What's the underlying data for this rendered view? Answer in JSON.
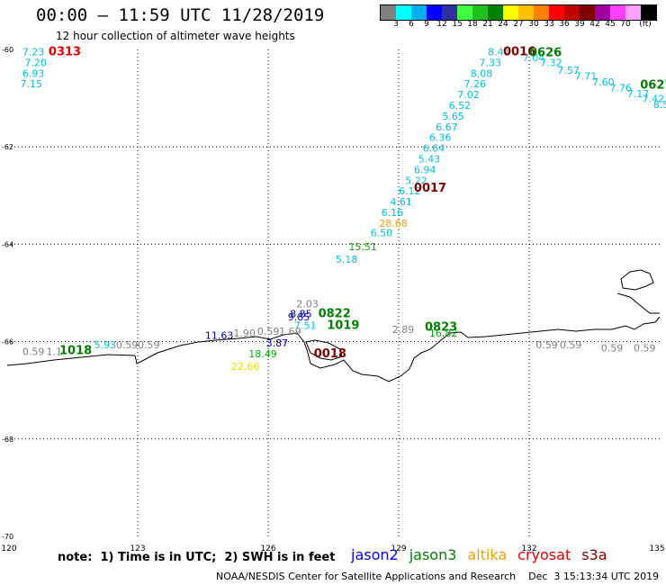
{
  "header": {
    "title": "00:00 – 11:59 UTC 11/28/2019",
    "subtitle": "12 hour collection of altimeter wave heights"
  },
  "scale": {
    "unit": "(ft)",
    "swatches": [
      "#808080",
      "#00ffff",
      "#00b0f0",
      "#0000ff",
      "#3030a0",
      "#40ff40",
      "#20c020",
      "#008000",
      "#ffff00",
      "#ffc000",
      "#ff8000",
      "#ff0000",
      "#c00000",
      "#800000",
      "#a000a0",
      "#ff40ff",
      "#ffa0ff",
      "#000000"
    ],
    "labels": [
      "3",
      "6",
      "9",
      "12",
      "15",
      "18",
      "21",
      "24",
      "27",
      "30",
      "33",
      "36",
      "39",
      "42",
      "45",
      "70"
    ]
  },
  "map": {
    "lon_range": [
      120,
      135
    ],
    "lat_range": [
      -70,
      -60
    ],
    "lon_ticks": [
      "120",
      "123",
      "126",
      "129",
      "132",
      "135"
    ],
    "lat_ticks": [
      "-60",
      "-62",
      "-64",
      "-66",
      "-68",
      "-70"
    ],
    "colors": {
      "gray": "#808080",
      "cyan": "#00c0e0",
      "blue": "#0000c0",
      "green": "#008000",
      "orange": "#f0a000",
      "darkred": "#800000",
      "red": "#e00000",
      "lightgreen": "#00b000",
      "yellow": "#e0e000"
    },
    "wave_labels": [
      {
        "text": "7.23",
        "lon": 120.35,
        "lat": -60.12,
        "color": "cyan"
      },
      {
        "text": "7.20",
        "lon": 120.4,
        "lat": -60.34,
        "color": "cyan"
      },
      {
        "text": "6.93",
        "lon": 120.35,
        "lat": -60.56,
        "color": "cyan"
      },
      {
        "text": "7.15",
        "lon": 120.3,
        "lat": -60.78,
        "color": "cyan"
      },
      {
        "text": "8.41",
        "lon": 131.05,
        "lat": -60.12,
        "color": "cyan"
      },
      {
        "text": "7.33",
        "lon": 130.85,
        "lat": -60.34,
        "color": "cyan"
      },
      {
        "text": "8.08",
        "lon": 130.65,
        "lat": -60.56,
        "color": "cyan"
      },
      {
        "text": "7.26",
        "lon": 130.5,
        "lat": -60.78,
        "color": "cyan"
      },
      {
        "text": "7.02",
        "lon": 130.35,
        "lat": -61.0,
        "color": "cyan"
      },
      {
        "text": "6.52",
        "lon": 130.15,
        "lat": -61.22,
        "color": "cyan"
      },
      {
        "text": "5.65",
        "lon": 130.0,
        "lat": -61.44,
        "color": "cyan"
      },
      {
        "text": "6.67",
        "lon": 129.85,
        "lat": -61.66,
        "color": "cyan"
      },
      {
        "text": "6.36",
        "lon": 129.7,
        "lat": -61.88,
        "color": "cyan"
      },
      {
        "text": "6.64",
        "lon": 129.55,
        "lat": -62.1,
        "color": "cyan"
      },
      {
        "text": "5.43",
        "lon": 129.45,
        "lat": -62.32,
        "color": "cyan"
      },
      {
        "text": "6.94",
        "lon": 129.35,
        "lat": -62.54,
        "color": "cyan"
      },
      {
        "text": "5.22",
        "lon": 129.15,
        "lat": -62.76,
        "color": "cyan"
      },
      {
        "text": "6.12",
        "lon": 129.0,
        "lat": -62.98,
        "color": "cyan"
      },
      {
        "text": "4.61",
        "lon": 128.8,
        "lat": -63.2,
        "color": "cyan"
      },
      {
        "text": "6.16",
        "lon": 128.6,
        "lat": -63.42,
        "color": "cyan"
      },
      {
        "text": "28.68",
        "lon": 128.55,
        "lat": -63.64,
        "color": "orange"
      },
      {
        "text": "6.50",
        "lon": 128.35,
        "lat": -63.84,
        "color": "cyan"
      },
      {
        "text": "15.51",
        "lon": 127.85,
        "lat": -64.12,
        "color": "lightgreen"
      },
      {
        "text": "5.18",
        "lon": 127.55,
        "lat": -64.38,
        "color": "cyan"
      },
      {
        "text": "7.04",
        "lon": 131.85,
        "lat": -60.24,
        "color": "cyan"
      },
      {
        "text": "7.32",
        "lon": 132.25,
        "lat": -60.34,
        "color": "cyan"
      },
      {
        "text": "7.57",
        "lon": 132.65,
        "lat": -60.5,
        "color": "cyan"
      },
      {
        "text": "7.71",
        "lon": 133.05,
        "lat": -60.62,
        "color": "cyan"
      },
      {
        "text": "7.60",
        "lon": 133.45,
        "lat": -60.74,
        "color": "cyan"
      },
      {
        "text": "7.76",
        "lon": 133.85,
        "lat": -60.86,
        "color": "cyan"
      },
      {
        "text": "7.17",
        "lon": 134.25,
        "lat": -60.98,
        "color": "cyan"
      },
      {
        "text": "7.42",
        "lon": 134.6,
        "lat": -61.08,
        "color": "cyan"
      },
      {
        "text": "8.5",
        "lon": 134.85,
        "lat": -61.2,
        "color": "cyan"
      },
      {
        "text": "2.03",
        "lon": 126.65,
        "lat": -65.3,
        "color": "gray"
      },
      {
        "text": "9.85",
        "lon": 126.45,
        "lat": -65.56,
        "color": "blue"
      },
      {
        "text": "8.85",
        "lon": 126.5,
        "lat": -65.5,
        "color": "blue"
      },
      {
        "text": "7.51",
        "lon": 126.6,
        "lat": -65.74,
        "color": "cyan"
      },
      {
        "text": "11.63",
        "lon": 124.55,
        "lat": -65.94,
        "color": "blue"
      },
      {
        "text": "1.90",
        "lon": 125.2,
        "lat": -65.9,
        "color": "gray"
      },
      {
        "text": "0.59",
        "lon": 125.75,
        "lat": -65.86,
        "color": "gray"
      },
      {
        "text": "1.69",
        "lon": 126.25,
        "lat": -65.86,
        "color": "gray"
      },
      {
        "text": "3.87",
        "lon": 125.95,
        "lat": -66.1,
        "color": "blue"
      },
      {
        "text": "18.49",
        "lon": 125.55,
        "lat": -66.32,
        "color": "lightgreen"
      },
      {
        "text": "0.59",
        "lon": 120.35,
        "lat": -66.28,
        "color": "gray"
      },
      {
        "text": "1.1",
        "lon": 120.9,
        "lat": -66.28,
        "color": "gray"
      },
      {
        "text": "5.93",
        "lon": 122.0,
        "lat": -66.14,
        "color": "cyan"
      },
      {
        "text": "0.59",
        "lon": 122.5,
        "lat": -66.14,
        "color": "gray"
      },
      {
        "text": "0.59",
        "lon": 123.0,
        "lat": -66.14,
        "color": "gray"
      },
      {
        "text": "2.89",
        "lon": 128.85,
        "lat": -65.82,
        "color": "gray"
      },
      {
        "text": "16.82",
        "lon": 129.7,
        "lat": -65.9,
        "color": "lightgreen"
      },
      {
        "text": "0.59",
        "lon": 132.15,
        "lat": -66.14,
        "color": "gray"
      },
      {
        "text": "0.59",
        "lon": 132.7,
        "lat": -66.14,
        "color": "gray"
      },
      {
        "text": "0.59",
        "lon": 133.65,
        "lat": -66.2,
        "color": "gray"
      },
      {
        "text": "0.59",
        "lon": 134.4,
        "lat": -66.2,
        "color": "gray"
      },
      {
        "text": "22.66",
        "lon": 125.15,
        "lat": -66.58,
        "color": "yellow"
      }
    ],
    "time_labels": [
      {
        "text": "0313",
        "lon": 120.95,
        "lat": -60.12,
        "color": "red"
      },
      {
        "text": "0016",
        "lon": 131.4,
        "lat": -60.12,
        "color": "darkred"
      },
      {
        "text": "0626",
        "lon": 132.0,
        "lat": -60.14,
        "color": "green"
      },
      {
        "text": "0627",
        "lon": 134.55,
        "lat": -60.8,
        "color": "green"
      },
      {
        "text": "0017",
        "lon": 129.35,
        "lat": -62.92,
        "color": "darkred"
      },
      {
        "text": "0822",
        "lon": 127.15,
        "lat": -65.5,
        "color": "green"
      },
      {
        "text": "1019",
        "lon": 127.35,
        "lat": -65.74,
        "color": "green"
      },
      {
        "text": "0823",
        "lon": 129.6,
        "lat": -65.78,
        "color": "green"
      },
      {
        "text": "1018",
        "lon": 121.2,
        "lat": -66.26,
        "color": "green"
      },
      {
        "text": "0018",
        "lon": 127.05,
        "lat": -66.32,
        "color": "darkred"
      }
    ]
  },
  "footer": {
    "note": "note:  1) Time is in UTC;  2) SWH is in feet",
    "legend": [
      {
        "label": "jason2",
        "color": "#0000e0"
      },
      {
        "label": "jason3",
        "color": "#008000"
      },
      {
        "label": "altika",
        "color": "#f0a000"
      },
      {
        "label": "cryosat",
        "color": "#e00000"
      },
      {
        "label": "s3a",
        "color": "#800000"
      }
    ],
    "credit": "NOAA/NESDIS Center for Satellite Applications and Research    Dec  3 15:13:34 UTC 2019"
  }
}
